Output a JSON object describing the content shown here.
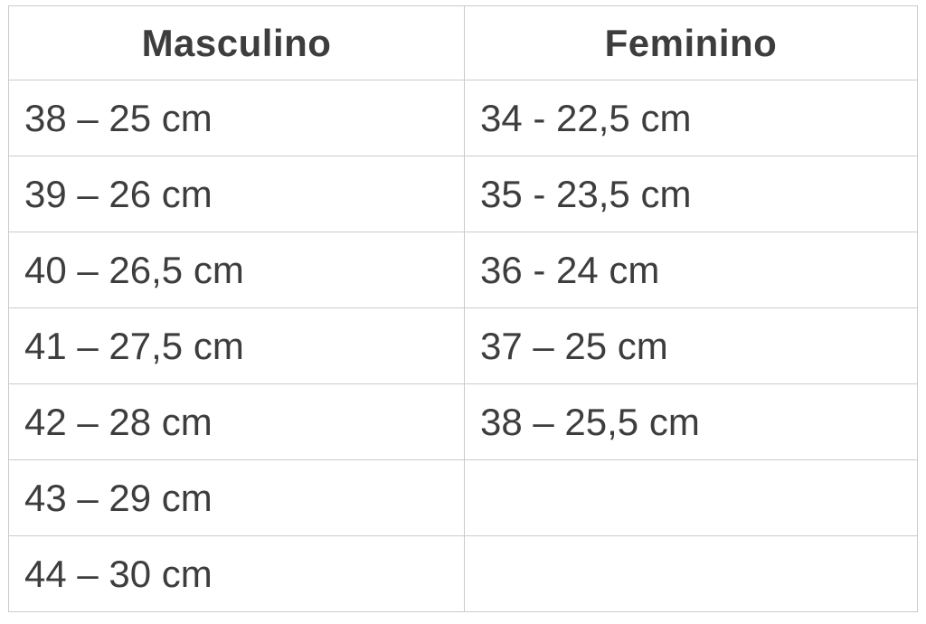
{
  "table": {
    "columns": [
      {
        "label": "Masculino"
      },
      {
        "label": "Feminino"
      }
    ],
    "rows": [
      {
        "masculino": "38 – 25 cm",
        "feminino": "34 - 22,5 cm"
      },
      {
        "masculino": "39 – 26 cm",
        "feminino": "35 - 23,5 cm"
      },
      {
        "masculino": "40 – 26,5 cm",
        "feminino": "36 - 24 cm"
      },
      {
        "masculino": "41 – 27,5 cm",
        "feminino": "37 – 25 cm"
      },
      {
        "masculino": "42 – 28 cm",
        "feminino": "38 – 25,5 cm"
      },
      {
        "masculino": "43 – 29 cm",
        "feminino": ""
      },
      {
        "masculino": "44 – 30 cm",
        "feminino": ""
      }
    ]
  },
  "colors": {
    "border": "#cbcbcb",
    "text": "#3d3d3d",
    "background": "#ffffff"
  }
}
